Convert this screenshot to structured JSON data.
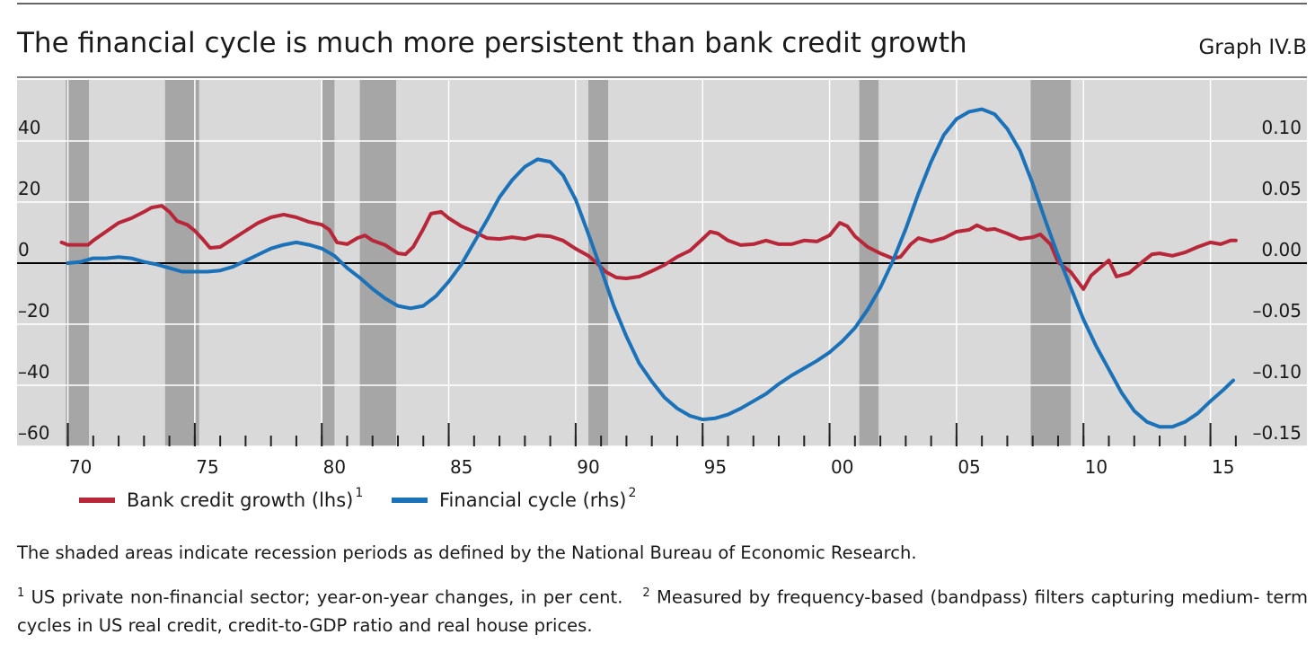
{
  "chart_data": {
    "type": "line",
    "title": "The financial cycle is much more persistent than bank credit growth",
    "graph_label": "Graph IV.B",
    "background": "#d9d9d9",
    "recession_color": "#a6a6a6",
    "grid": true,
    "xlim": [
      1968,
      2018.8
    ],
    "xticks": [
      {
        "value": 1970,
        "label": "70"
      },
      {
        "value": 1975,
        "label": "75"
      },
      {
        "value": 1980,
        "label": "80"
      },
      {
        "value": 1985,
        "label": "85"
      },
      {
        "value": 1990,
        "label": "90"
      },
      {
        "value": 1995,
        "label": "95"
      },
      {
        "value": 2000,
        "label": "00"
      },
      {
        "value": 2005,
        "label": "05"
      },
      {
        "value": 2010,
        "label": "10"
      },
      {
        "value": 2015,
        "label": "15"
      }
    ],
    "xminorticks": [
      1970,
      1971,
      1972,
      1973,
      1974,
      1975,
      1976,
      1977,
      1978,
      1979,
      1980,
      1981,
      1982,
      1983,
      1984,
      1985,
      1986,
      1987,
      1988,
      1989,
      1990,
      1991,
      1992,
      1993,
      1994,
      1995,
      1996,
      1997,
      1998,
      1999,
      2000,
      2001,
      2002,
      2003,
      2004,
      2005,
      2006,
      2007,
      2008,
      2009,
      2010,
      2011,
      2012,
      2013,
      2014,
      2015,
      2016
    ],
    "ylim": [
      -60,
      60
    ],
    "yticks": [
      40,
      20,
      0,
      {
        "value": -20,
        "label": "–20"
      },
      {
        "value": -40,
        "label": "–40"
      },
      {
        "value": -60,
        "label": "–60"
      }
    ],
    "y2lim": [
      -0.15,
      0.15
    ],
    "y2ticks": [
      {
        "value": 0.1,
        "label": "0.10"
      },
      {
        "value": 0.05,
        "label": "0.05"
      },
      {
        "value": 0,
        "label": "0.00"
      },
      {
        "value": -0.05,
        "label": "–0.05"
      },
      {
        "value": -0.1,
        "label": "–0.10"
      },
      {
        "value": -0.15,
        "label": "–0.15"
      }
    ],
    "recessions": [
      [
        1969.92,
        1970.83
      ],
      [
        1973.83,
        1975.17
      ],
      [
        1980.0,
        1980.5
      ],
      [
        1981.5,
        1982.93
      ],
      [
        1990.5,
        1991.28
      ],
      [
        2001.17,
        2001.93
      ],
      [
        2007.92,
        2009.5
      ]
    ],
    "series": [
      {
        "name": "Bank credit growth (lhs)",
        "footnote": "1",
        "color": "#b82739",
        "axis": "y",
        "x": [
          1969.75,
          1970.0,
          1970.8,
          1971.0,
          1971.5,
          1972,
          1972.5,
          1973,
          1973.3,
          1973.7,
          1974.0,
          1974.3,
          1974.7,
          1975.0,
          1975.3,
          1975.6,
          1976.0,
          1976.5,
          1977,
          1977.5,
          1978,
          1978.5,
          1979,
          1979.5,
          1980,
          1980.3,
          1980.6,
          1981,
          1981.4,
          1981.7,
          1982,
          1982.5,
          1983,
          1983.3,
          1983.6,
          1984,
          1984.3,
          1984.7,
          1985,
          1985.5,
          1986,
          1986.5,
          1987,
          1987.5,
          1988,
          1988.5,
          1989,
          1989.5,
          1990,
          1990.5,
          1990.8,
          1991.2,
          1991.6,
          1992,
          1992.5,
          1993,
          1993.5,
          1994,
          1994.5,
          1995,
          1995.3,
          1995.6,
          1996,
          1996.5,
          1997,
          1997.5,
          1998,
          1998.5,
          1999,
          1999.5,
          2000,
          2000.4,
          2000.7,
          2001,
          2001.5,
          2002,
          2002.5,
          2002.8,
          2003.2,
          2003.5,
          2004,
          2004.5,
          2005,
          2005.5,
          2005.8,
          2006.2,
          2006.5,
          2007,
          2007.5,
          2008,
          2008.3,
          2008.7,
          2009,
          2009.5,
          2010,
          2010.3,
          2010.7,
          2011,
          2011.3,
          2011.8,
          2012.3,
          2012.7,
          2013,
          2013.5,
          2014,
          2014.5,
          2015,
          2015.4,
          2015.8,
          2016
        ],
        "values": [
          6.8,
          6,
          6,
          7.4,
          10.3,
          13.2,
          14.7,
          16.8,
          18.2,
          18.8,
          16.8,
          13.8,
          12.6,
          10.6,
          7.9,
          5,
          5.3,
          7.9,
          10.6,
          13.2,
          15,
          15.9,
          15,
          13.5,
          12.6,
          10.9,
          6.8,
          6.2,
          8.2,
          9.1,
          7.4,
          5.9,
          3.2,
          2.9,
          5.3,
          11.2,
          16.2,
          16.8,
          14.7,
          12.1,
          10.3,
          8.2,
          7.9,
          8.5,
          7.9,
          9.1,
          8.8,
          7.4,
          4.7,
          2.4,
          0.3,
          -2.9,
          -4.7,
          -5,
          -4.4,
          -2.6,
          -0.6,
          2.1,
          4.1,
          7.9,
          10.3,
          9.7,
          7.4,
          5.9,
          6.2,
          7.4,
          6.2,
          6.2,
          7.4,
          7.1,
          9.1,
          13.2,
          12.1,
          8.8,
          5.3,
          3.2,
          1.5,
          2.1,
          6.2,
          8.2,
          7.1,
          8.2,
          10.3,
          10.9,
          12.4,
          10.9,
          11.2,
          9.7,
          7.9,
          8.5,
          9.4,
          6.2,
          0.3,
          -2.9,
          -8.5,
          -4.1,
          -1.2,
          0.9,
          -4.4,
          -3.2,
          0.3,
          2.9,
          3.2,
          2.4,
          3.5,
          5.3,
          6.8,
          6.2,
          7.4,
          7.4
        ]
      },
      {
        "name": "Financial cycle (rhs)",
        "footnote": "2",
        "color": "#1b72b8",
        "axis": "y2",
        "x": [
          1970,
          1970.5,
          1971,
          1971.5,
          1972,
          1972.5,
          1973,
          1973.5,
          1974,
          1974.5,
          1975,
          1975.5,
          1976,
          1976.5,
          1977,
          1977.5,
          1978,
          1978.5,
          1979,
          1979.5,
          1980,
          1980.5,
          1981,
          1981.5,
          1982,
          1982.5,
          1983,
          1983.5,
          1984,
          1984.5,
          1985,
          1985.5,
          1986,
          1986.5,
          1987,
          1987.5,
          1988,
          1988.5,
          1989,
          1989.5,
          1990,
          1990.5,
          1991,
          1991.5,
          1992,
          1992.5,
          1993,
          1993.5,
          1994,
          1994.5,
          1995,
          1995.5,
          1996,
          1996.5,
          1997,
          1997.5,
          1998,
          1998.5,
          1999,
          1999.5,
          2000,
          2000.5,
          2001,
          2001.5,
          2002,
          2002.5,
          2003,
          2003.5,
          2004,
          2004.5,
          2005,
          2005.5,
          2006,
          2006.5,
          2007,
          2007.5,
          2008,
          2008.5,
          2009,
          2009.5,
          2010,
          2010.5,
          2011,
          2011.5,
          2012,
          2012.5,
          2013,
          2013.5,
          2014,
          2014.5,
          2015,
          2015.5,
          2015.9
        ],
        "values": [
          0,
          0.001,
          0.004,
          0.004,
          0.005,
          0.004,
          0.001,
          -0.001,
          -0.004,
          -0.007,
          -0.007,
          -0.007,
          -0.006,
          -0.003,
          0.002,
          0.007,
          0.012,
          0.015,
          0.017,
          0.015,
          0.012,
          0.006,
          -0.004,
          -0.012,
          -0.021,
          -0.029,
          -0.035,
          -0.037,
          -0.035,
          -0.027,
          -0.015,
          -0.001,
          0.017,
          0.035,
          0.054,
          0.068,
          0.079,
          0.085,
          0.083,
          0.072,
          0.052,
          0.024,
          -0.005,
          -0.035,
          -0.06,
          -0.082,
          -0.097,
          -0.11,
          -0.119,
          -0.125,
          -0.128,
          -0.127,
          -0.124,
          -0.119,
          -0.113,
          -0.107,
          -0.099,
          -0.092,
          -0.086,
          -0.08,
          -0.073,
          -0.064,
          -0.053,
          -0.038,
          -0.02,
          0.002,
          0.028,
          0.057,
          0.083,
          0.105,
          0.118,
          0.124,
          0.126,
          0.122,
          0.11,
          0.092,
          0.065,
          0.035,
          0.006,
          -0.02,
          -0.046,
          -0.068,
          -0.087,
          -0.106,
          -0.121,
          -0.13,
          -0.134,
          -0.134,
          -0.13,
          -0.123,
          -0.113,
          -0.104,
          -0.096
        ]
      }
    ],
    "note": "The shaded areas indicate recession periods as defined by the National Bureau of Economic Research.",
    "footnotes": [
      {
        "mark": "1",
        "text": "US private non-financial sector; year-on-year changes, in per cent."
      },
      {
        "mark": "2",
        "text": "Measured by frequency-based (bandpass) filters capturing medium- term cycles in US real credit, credit-to-GDP ratio and real house prices."
      }
    ]
  }
}
